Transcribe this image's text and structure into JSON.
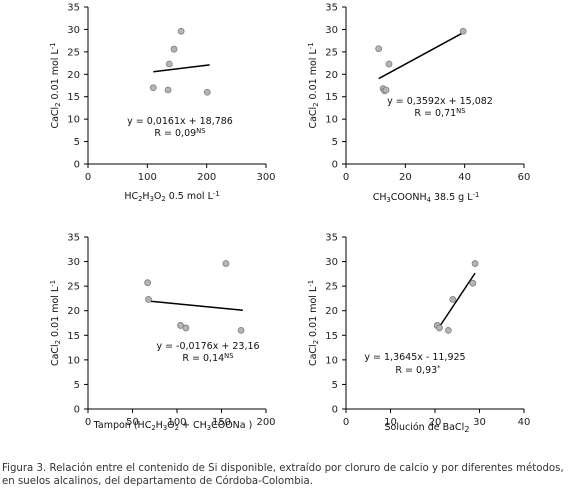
{
  "chart_data": [
    {
      "type": "scatter",
      "xlabel": "HC2H3O2 0.5 mol L-1",
      "xlabel_parts": [
        {
          "t": "HC"
        },
        {
          "t": "2",
          "sub": true
        },
        {
          "t": "H"
        },
        {
          "t": "3",
          "sub": true
        },
        {
          "t": "O"
        },
        {
          "t": "2",
          "sub": true
        },
        {
          "t": " 0.5 mol L"
        },
        {
          "t": "-1",
          "sup": true
        }
      ],
      "ylabel": "CaCl2 0.01 mol L-1",
      "ylabel_parts": [
        {
          "t": "CaCl"
        },
        {
          "t": "2",
          "sub": true
        },
        {
          "t": " 0.01 mol L"
        },
        {
          "t": "-1",
          "sup": true
        }
      ],
      "xlim": [
        0,
        300
      ],
      "xticks": [
        0,
        100,
        200,
        300
      ],
      "ylim": [
        0,
        35
      ],
      "yticks": [
        0,
        5,
        10,
        15,
        20,
        25,
        30,
        35
      ],
      "points": [
        [
          110,
          17
        ],
        [
          135,
          16.5
        ],
        [
          137,
          22.3
        ],
        [
          145,
          25.6
        ],
        [
          157,
          29.6
        ],
        [
          201,
          16
        ]
      ],
      "trendline": {
        "slope": 0.0161,
        "intercept": 18.786,
        "x_range": [
          110,
          205
        ]
      },
      "equation": "y = 0,0161x + 18,786",
      "r_label": "R = 0,09",
      "r_sup": "NS"
    },
    {
      "type": "scatter",
      "xlabel": "CH3COONH4 38.5 g L-1",
      "xlabel_parts": [
        {
          "t": "CH"
        },
        {
          "t": "3",
          "sub": true
        },
        {
          "t": "COONH"
        },
        {
          "t": "4",
          "sub": true
        },
        {
          "t": " 38.5 g L"
        },
        {
          "t": "-1",
          "sup": true
        }
      ],
      "ylabel": "CaCl2 0.01 mol L-1",
      "ylabel_parts": [
        {
          "t": "CaCl"
        },
        {
          "t": "2",
          "sub": true
        },
        {
          "t": " 0.01 mol L"
        },
        {
          "t": "-1",
          "sup": true
        }
      ],
      "xlim": [
        0,
        60
      ],
      "xticks": [
        0,
        20,
        40,
        60
      ],
      "ylim": [
        0,
        35
      ],
      "yticks": [
        0,
        5,
        10,
        15,
        20,
        25,
        30,
        35
      ],
      "points": [
        [
          11,
          25.7
        ],
        [
          12.5,
          16.8
        ],
        [
          13,
          16.3
        ],
        [
          13.5,
          16.5
        ],
        [
          14.5,
          22.3
        ],
        [
          39.5,
          29.6
        ]
      ],
      "trendline": {
        "slope": 0.3592,
        "intercept": 15.082,
        "x_range": [
          11,
          39.5
        ]
      },
      "equation": "y = 0,3592x + 15,082",
      "r_label": "R = 0,71",
      "r_sup": "NS"
    },
    {
      "type": "scatter",
      "xlabel": "Tampon (HC2H3O2 + CH3COONa )",
      "xlabel_parts": [
        {
          "t": "Tampon (HC"
        },
        {
          "t": "2",
          "sub": true
        },
        {
          "t": "H"
        },
        {
          "t": "3",
          "sub": true
        },
        {
          "t": "O"
        },
        {
          "t": "2",
          "sub": true
        },
        {
          "t": " + CH"
        },
        {
          "t": "3",
          "sub": true
        },
        {
          "t": "COONa )"
        }
      ],
      "ylabel": "CaCl2 0.01 mol L-1",
      "ylabel_parts": [
        {
          "t": "CaCl"
        },
        {
          "t": "2",
          "sub": true
        },
        {
          "t": " 0.01 mol L"
        },
        {
          "t": "-1",
          "sup": true
        }
      ],
      "xlim": [
        0,
        200
      ],
      "xticks": [
        0,
        50,
        100,
        150,
        200
      ],
      "ylim": [
        0,
        35
      ],
      "yticks": [
        0,
        5,
        10,
        15,
        20,
        25,
        30,
        35
      ],
      "points": [
        [
          67,
          25.7
        ],
        [
          68,
          22.3
        ],
        [
          104,
          17
        ],
        [
          110,
          16.5
        ],
        [
          155,
          29.6
        ],
        [
          172,
          16
        ]
      ],
      "trendline": {
        "slope": -0.0176,
        "intercept": 23.16,
        "x_range": [
          66,
          174
        ]
      },
      "equation": "y = -0,0176x + 23,16",
      "r_label": "R = 0,14",
      "r_sup": "NS"
    },
    {
      "type": "scatter",
      "xlabel": "Solución de BaCl2",
      "xlabel_parts": [
        {
          "t": "Solución de BaCl"
        },
        {
          "t": "2",
          "sub": true
        }
      ],
      "ylabel": "CaCl2 0.01 mol L-1",
      "ylabel_parts": [
        {
          "t": "CaCl"
        },
        {
          "t": "2",
          "sub": true
        },
        {
          "t": " 0.01 mol L"
        },
        {
          "t": "-1",
          "sup": true
        }
      ],
      "xlim": [
        0,
        40
      ],
      "xticks": [
        0,
        10,
        20,
        30,
        40
      ],
      "ylim": [
        0,
        35
      ],
      "yticks": [
        0,
        5,
        10,
        15,
        20,
        25,
        30,
        35
      ],
      "points": [
        [
          20.5,
          17
        ],
        [
          21,
          16.5
        ],
        [
          23,
          16
        ],
        [
          24,
          22.3
        ],
        [
          28.5,
          25.6
        ],
        [
          29,
          29.6
        ]
      ],
      "trendline": {
        "slope": 1.3645,
        "intercept": -11.925,
        "x_range": [
          20.5,
          29
        ]
      },
      "equation": "y = 1,3645x - 11,925",
      "r_label": "R = 0,93",
      "r_sup": "*"
    }
  ],
  "caption": "Figura 3. Relación entre el contenido de Si disponible, extraído por cloruro de calcio y por diferentes métodos, en suelos alcalinos, del departamento de Córdoba-Colombia.",
  "colors": {
    "point_fill": "#b4b4b4",
    "point_stroke": "#7f7f7f",
    "line": "#000000",
    "axis": "#000000",
    "caption": "#333333"
  }
}
